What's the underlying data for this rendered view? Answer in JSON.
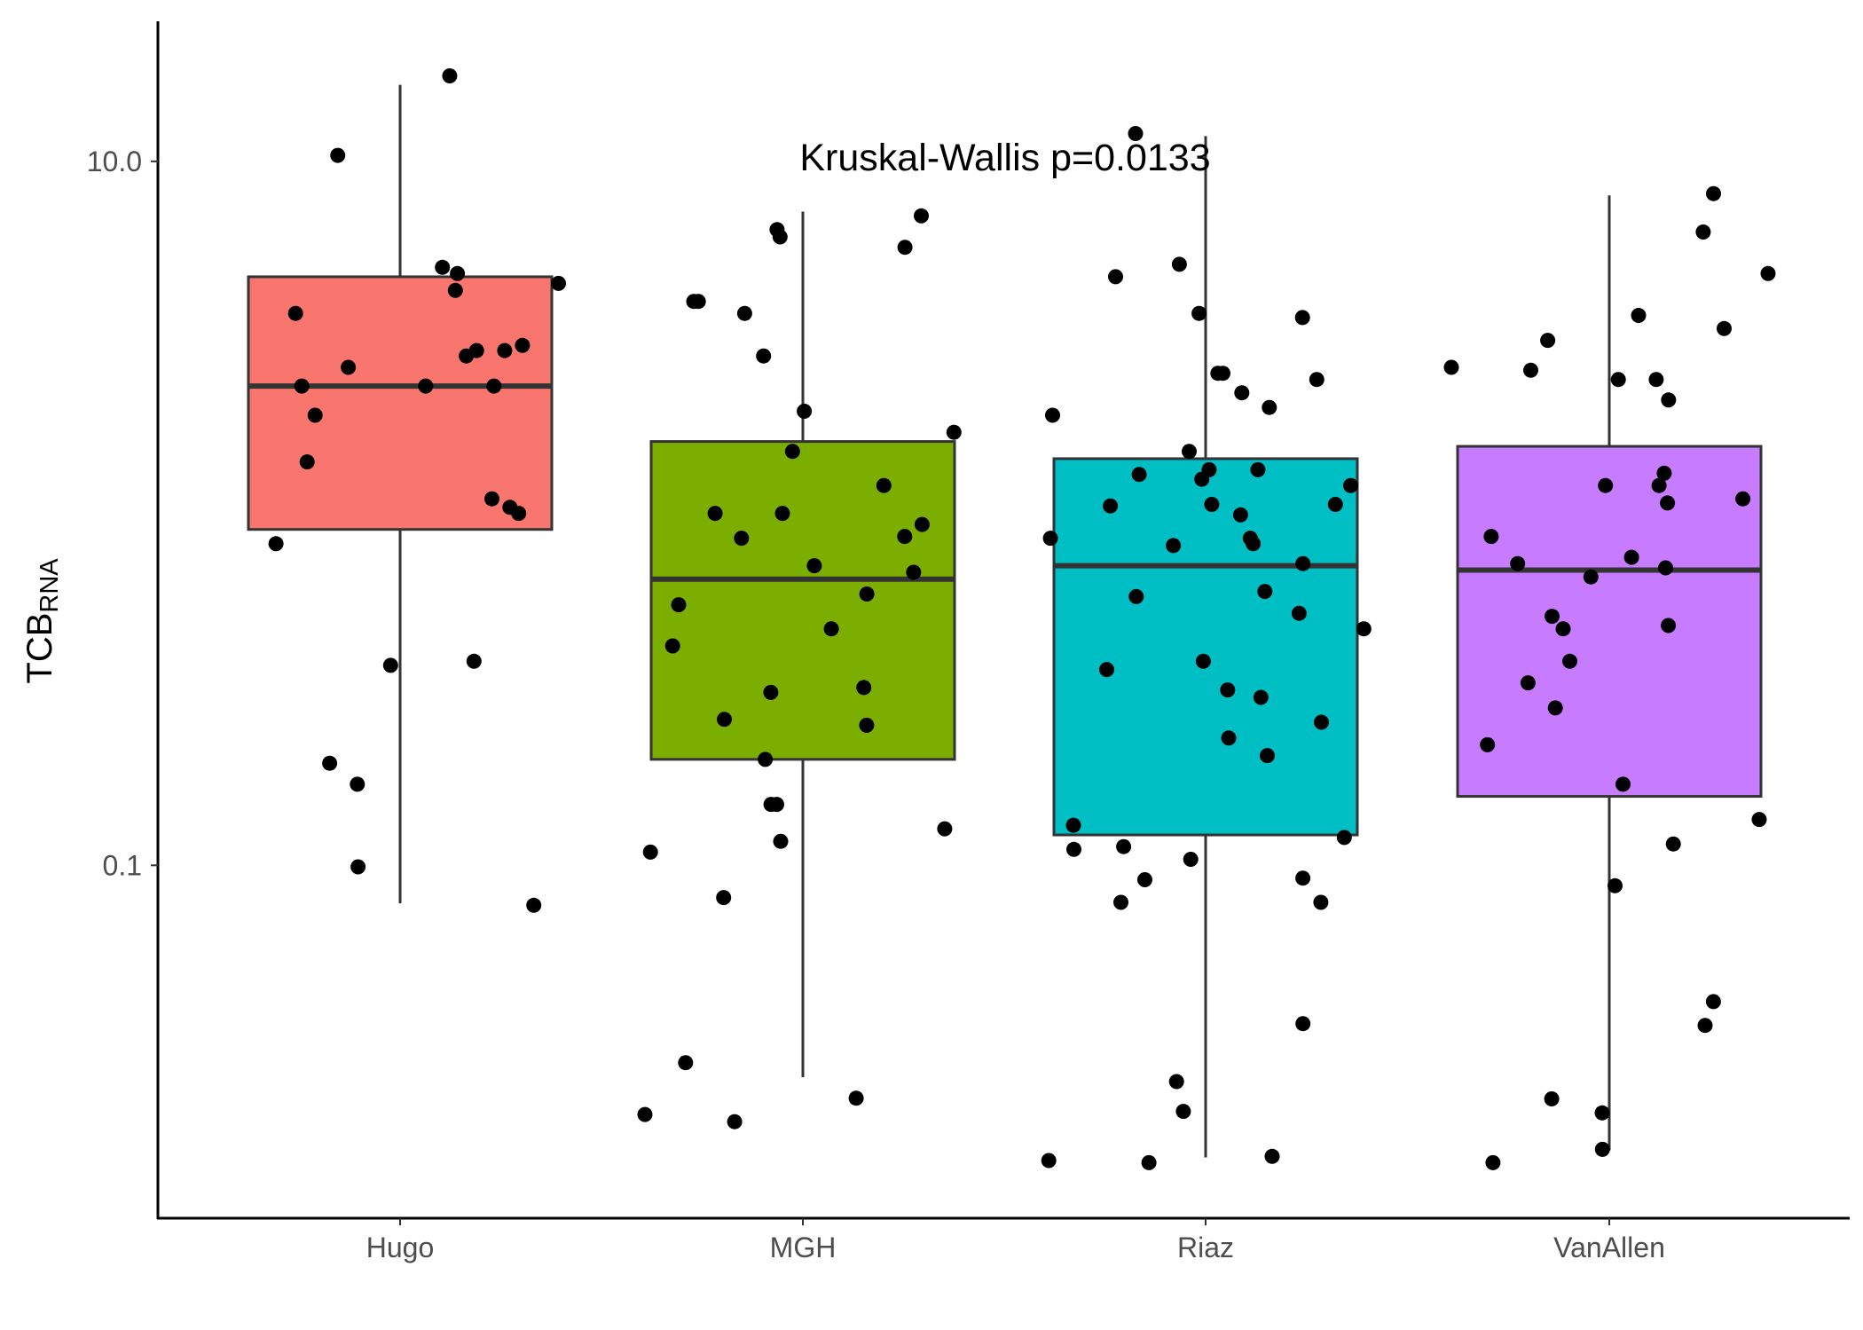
{
  "chart_data": {
    "type": "box",
    "scale": "log10",
    "ylabel": {
      "main": "TCB",
      "sub": "RNA"
    },
    "xlabel": "",
    "y_ticks": [
      0.1,
      10.0
    ],
    "y_tick_labels": [
      "0.1",
      "10.0"
    ],
    "ylim": [
      0.01,
      25
    ],
    "grid": false,
    "legend": "none",
    "annotation": "Kruskal-Wallis p=0.0133",
    "categories": [
      "Hugo",
      "MGH",
      "Riaz",
      "VanAllen"
    ],
    "colors": [
      "#F8766D",
      "#7CAE00",
      "#00BFC4",
      "#C77CFF"
    ],
    "boxes": [
      {
        "name": "Hugo",
        "whisker_low": 0.078,
        "q1": 0.9,
        "median": 2.3,
        "q3": 4.7,
        "whisker_high": 16.5
      },
      {
        "name": "MGH",
        "whisker_low": 0.025,
        "q1": 0.2,
        "median": 0.65,
        "q3": 1.6,
        "whisker_high": 7.2
      },
      {
        "name": "Riaz",
        "whisker_low": 0.0148,
        "q1": 0.122,
        "median": 0.71,
        "q3": 1.43,
        "whisker_high": 11.8
      },
      {
        "name": "VanAllen",
        "whisker_low": 0.0155,
        "q1": 0.157,
        "median": 0.69,
        "q3": 1.55,
        "whisker_high": 8.0
      }
    ],
    "points": [
      {
        "group": "Hugo",
        "values": [
          17.5,
          10.4,
          5.0,
          4.5,
          4.8,
          4.3,
          3.7,
          3.0,
          2.8,
          2.9,
          2.9,
          2.6,
          2.3,
          2.3,
          2.3,
          1.9,
          1.4,
          1.1,
          1.0,
          1.04,
          0.82,
          0.37,
          0.38,
          0.17,
          0.195,
          0.099,
          0.077
        ]
      },
      {
        "group": "MGH",
        "values": [
          7.0,
          6.4,
          6.1,
          5.7,
          4.0,
          4.0,
          3.7,
          2.8,
          1.95,
          1.7,
          1.5,
          1.2,
          1.0,
          1.0,
          0.93,
          0.86,
          0.85,
          0.71,
          0.68,
          0.59,
          0.55,
          0.47,
          0.42,
          0.32,
          0.31,
          0.25,
          0.26,
          0.2,
          0.149,
          0.149,
          0.127,
          0.117,
          0.109,
          0.081,
          0.0275,
          0.0218,
          0.0196,
          0.0187
        ]
      },
      {
        "group": "Riaz",
        "values": [
          12.0,
          5.1,
          4.7,
          3.6,
          3.7,
          2.5,
          2.4,
          2.2,
          2.0,
          1.9,
          2.5,
          1.5,
          1.33,
          1.33,
          1.29,
          1.25,
          1.2,
          1.05,
          1.06,
          1.06,
          0.99,
          0.85,
          0.85,
          0.82,
          0.81,
          0.72,
          0.6,
          0.58,
          0.52,
          0.47,
          0.38,
          0.36,
          0.315,
          0.3,
          0.255,
          0.23,
          0.205,
          0.13,
          0.12,
          0.111,
          0.113,
          0.104,
          0.092,
          0.091,
          0.0785,
          0.0785,
          0.0355,
          0.0243,
          0.02,
          0.0145,
          0.0143,
          0.0149
        ]
      },
      {
        "group": "VanAllen",
        "values": [
          8.1,
          6.3,
          4.8,
          3.65,
          3.35,
          3.1,
          2.6,
          2.55,
          2.4,
          2.4,
          2.1,
          1.3,
          1.2,
          1.2,
          1.1,
          1.07,
          0.86,
          0.75,
          0.72,
          0.7,
          0.66,
          0.51,
          0.48,
          0.47,
          0.38,
          0.33,
          0.28,
          0.22,
          0.17,
          0.135,
          0.115,
          0.0875,
          0.041,
          0.0351,
          0.0217,
          0.0198,
          0.0156,
          0.0143
        ]
      }
    ]
  }
}
